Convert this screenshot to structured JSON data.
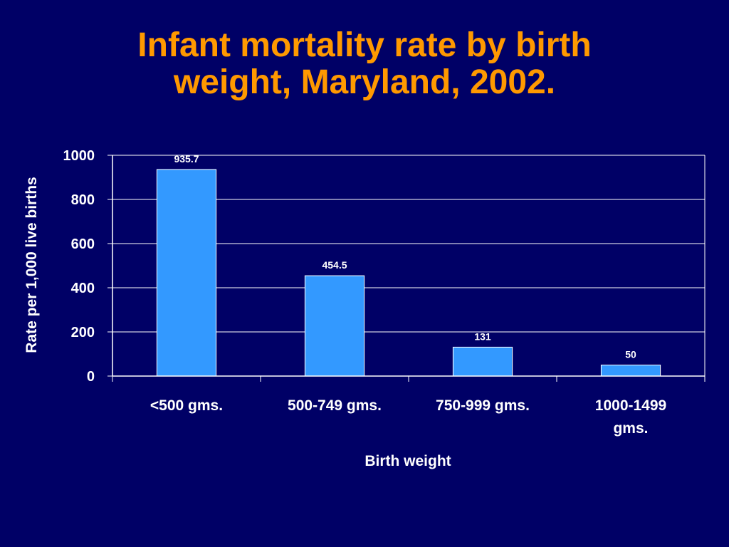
{
  "slide": {
    "title_line1": "Infant mortality rate by birth",
    "title_line2": "weight, Maryland, 2002."
  },
  "colors": {
    "background": "#000066",
    "title": "#FF9900",
    "bar": "#3399FF",
    "bar_outline": "#FFFFFF",
    "gridline": "#FFFFFF",
    "text": "#FFFFFF"
  },
  "chart_data": {
    "type": "bar",
    "title": "Infant mortality rate by birth weight, Maryland, 2002.",
    "categories": [
      [
        "<500 gms."
      ],
      [
        "500-749 gms."
      ],
      [
        "750-999 gms."
      ],
      [
        "1000-1499",
        "gms."
      ]
    ],
    "values": [
      935.7,
      454.5,
      131,
      50
    ],
    "data_labels": [
      "935.7",
      "454.5",
      "131",
      "50"
    ],
    "xlabel": "Birth weight",
    "ylabel": "Rate per 1,000 live births",
    "ylim": [
      0,
      1000
    ],
    "yticks": [
      0,
      200,
      400,
      600,
      800,
      1000
    ],
    "grid": true,
    "legend": "none"
  }
}
